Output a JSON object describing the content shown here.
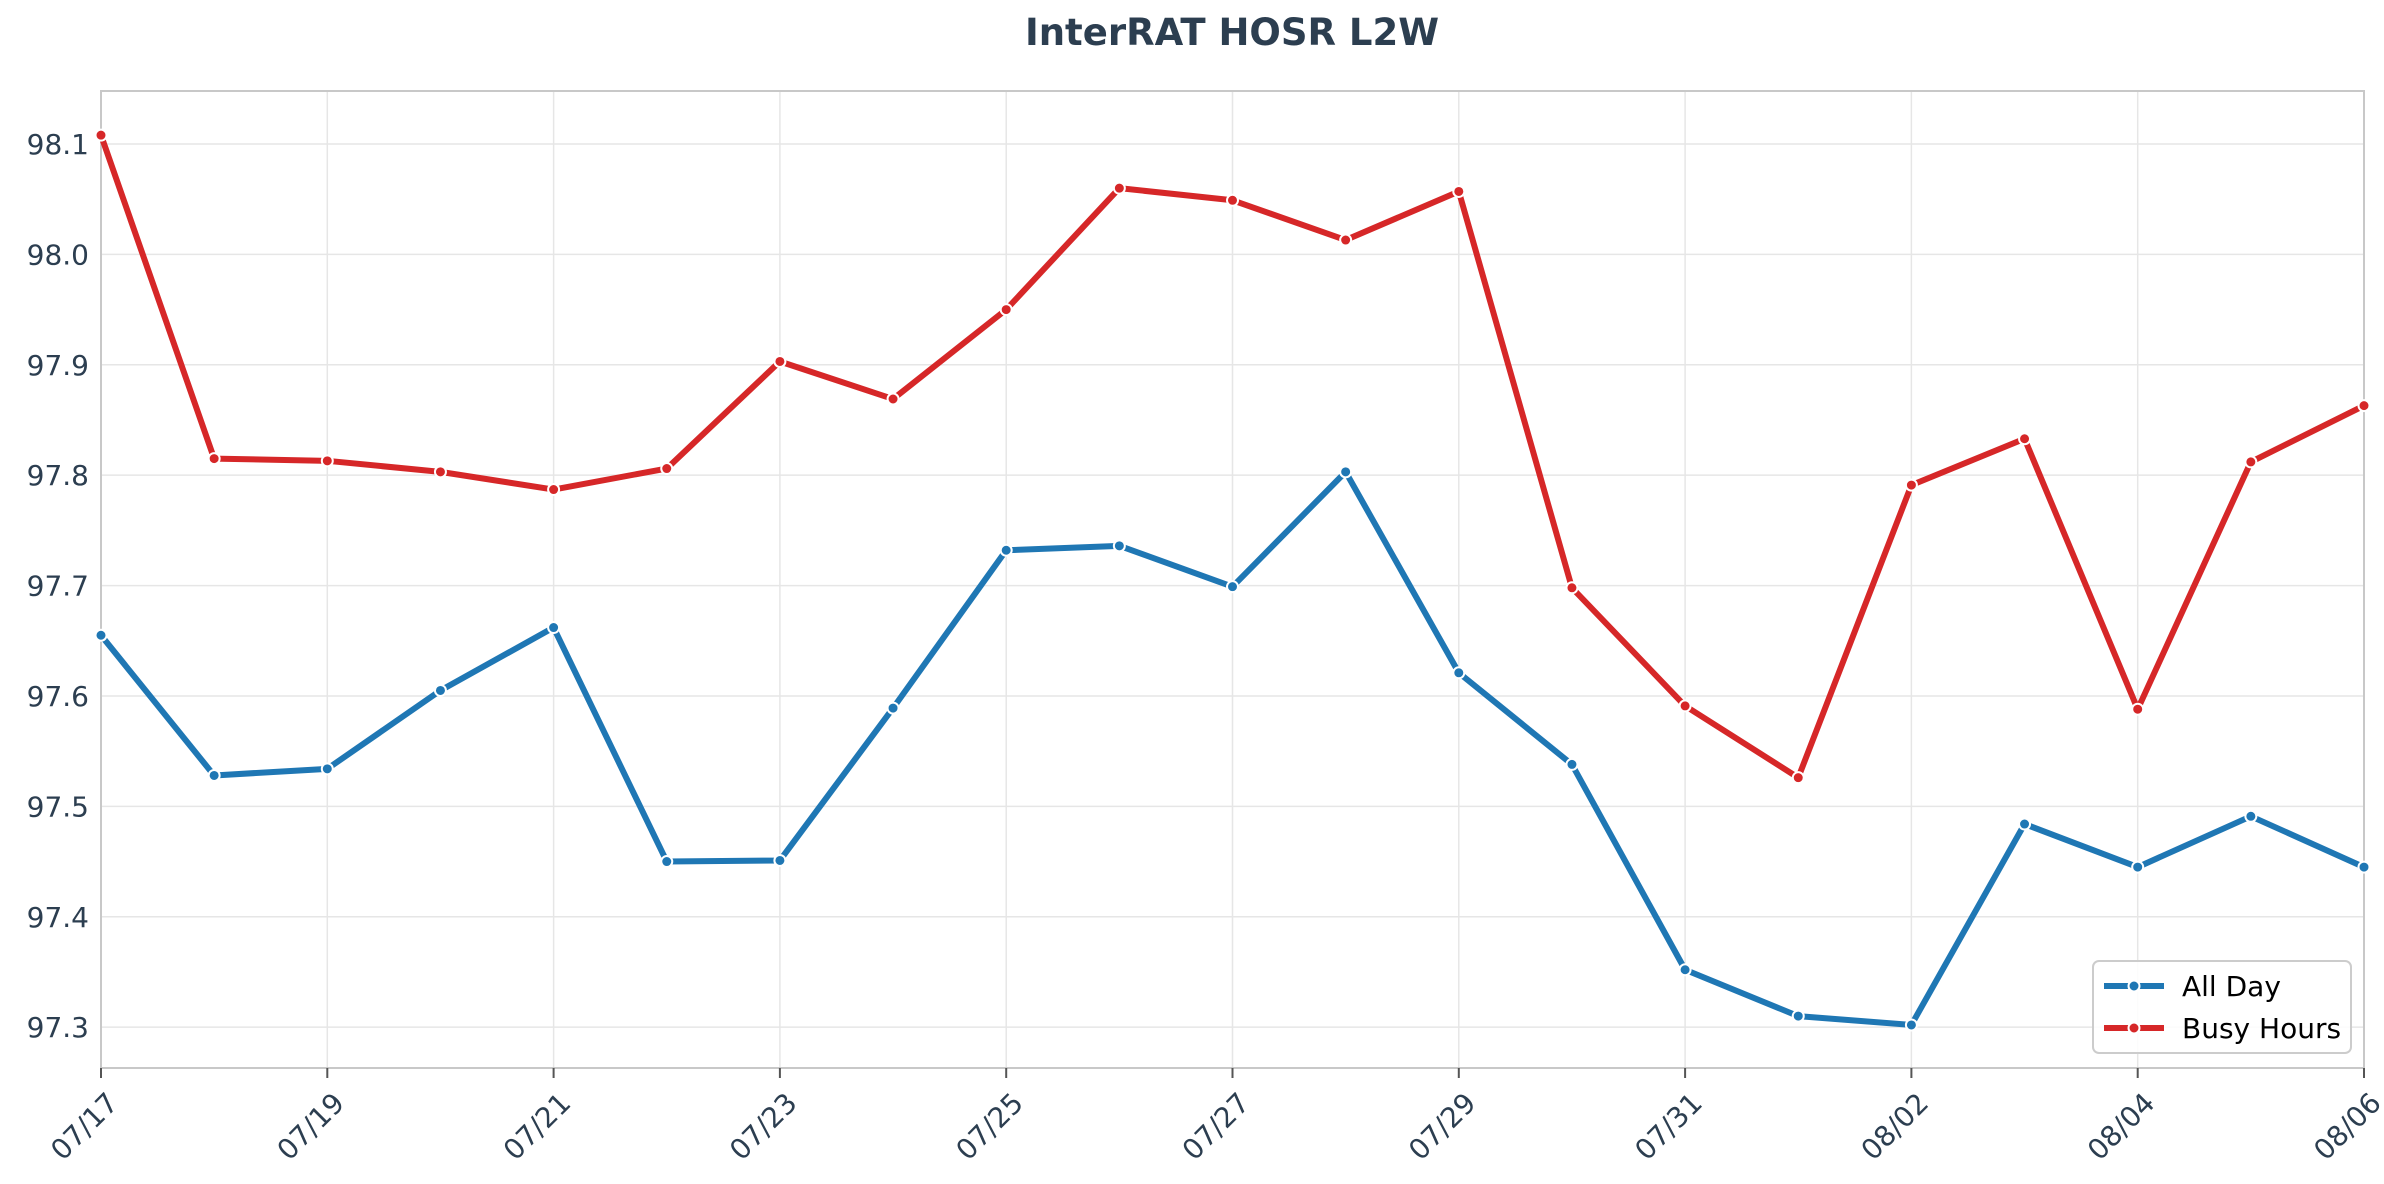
{
  "chart_data": {
    "type": "line",
    "title": "InterRAT HOSR L2W",
    "xlabel": "",
    "ylabel": "",
    "x": [
      "07/17",
      "07/18",
      "07/19",
      "07/20",
      "07/21",
      "07/22",
      "07/23",
      "07/24",
      "07/25",
      "07/26",
      "07/27",
      "07/28",
      "07/29",
      "07/30",
      "07/31",
      "08/01",
      "08/02",
      "08/03",
      "08/04",
      "08/05",
      "08/06"
    ],
    "x_tick_labels": [
      "07/17",
      "07/19",
      "07/21",
      "07/23",
      "07/25",
      "07/27",
      "07/29",
      "07/31",
      "08/02",
      "08/04",
      "08/06"
    ],
    "series": [
      {
        "name": "All Day",
        "color": "#1f77b4",
        "values": [
          97.655,
          97.528,
          97.534,
          97.605,
          97.662,
          97.45,
          97.451,
          97.589,
          97.732,
          97.736,
          97.699,
          97.803,
          97.621,
          97.538,
          97.352,
          97.31,
          97.302,
          97.484,
          97.445,
          97.491,
          97.445
        ]
      },
      {
        "name": "Busy Hours",
        "color": "#d62728",
        "values": [
          98.108,
          97.815,
          97.813,
          97.803,
          97.787,
          97.806,
          97.903,
          97.869,
          97.95,
          98.06,
          98.049,
          98.013,
          98.057,
          97.698,
          97.591,
          97.526,
          97.791,
          97.833,
          97.588,
          97.812,
          97.863
        ]
      }
    ],
    "ylim": [
      97.263,
      98.148
    ],
    "y_ticks": [
      97.3,
      97.4,
      97.5,
      97.6,
      97.7,
      97.8,
      97.9,
      98.0,
      98.1
    ],
    "grid": true,
    "legend_position": "lower-right"
  }
}
